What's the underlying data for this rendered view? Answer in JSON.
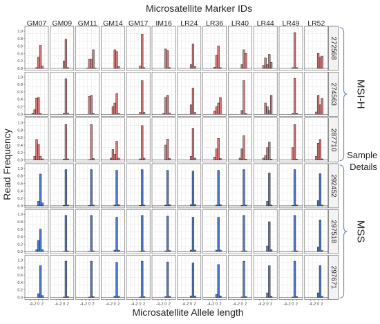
{
  "chart_data": {
    "type": "bar",
    "title": "Microsatellite Marker IDs",
    "xlabel": "Microsatellite Allele length",
    "ylabel": "Read Frequency",
    "markers": [
      "GM07",
      "GM09",
      "GM11",
      "GM14",
      "GM17",
      "IM16",
      "LR24",
      "LR36",
      "LR40",
      "LR44",
      "LR49",
      "LR52"
    ],
    "samples": [
      "272568",
      "274563",
      "287710",
      "292452",
      "297518",
      "297671"
    ],
    "groups": [
      {
        "label": "MSI-H",
        "samples": [
          "272568",
          "274563",
          "287710"
        ],
        "color": "#d9797a"
      },
      {
        "label": "MSS",
        "samples": [
          "292452",
          "297518",
          "297671"
        ],
        "color": "#4e7ad1"
      }
    ],
    "side_note": [
      "Sample",
      "Details"
    ],
    "x_ticks": [
      "-4",
      "-2",
      "0",
      "2"
    ],
    "y_ticks": [
      "0.0",
      "0.2",
      "0.4",
      "0.6",
      "0.8",
      "1.0"
    ],
    "ylim": [
      0,
      1
    ],
    "x_positions": [
      -5,
      -4,
      -3,
      -2,
      -1,
      0,
      1,
      2,
      3
    ],
    "values": {
      "272568": [
        [
          0,
          0,
          0,
          0,
          0.02,
          0.3,
          0.62,
          0.06,
          0
        ],
        [
          0,
          0,
          0,
          0,
          0,
          0.2,
          0.78,
          0.02,
          0
        ],
        [
          0,
          0,
          0,
          0,
          0.01,
          0.25,
          0.25,
          0.5,
          0.01
        ],
        [
          0,
          0,
          0,
          0,
          0,
          0.5,
          0.45,
          0.05,
          0
        ],
        [
          0,
          0,
          0,
          0,
          0,
          0.06,
          0.92,
          0.02,
          0
        ],
        [
          0,
          0,
          0,
          0,
          0,
          0.52,
          0.48,
          0.02,
          0
        ],
        [
          0,
          0,
          0,
          0,
          0,
          0.1,
          0.65,
          0.05,
          0
        ],
        [
          0,
          0,
          0,
          0,
          0.03,
          0.35,
          0.6,
          0.02,
          0
        ],
        [
          0,
          0,
          0,
          0,
          0,
          0.1,
          0.5,
          0.4,
          0
        ],
        [
          0,
          0,
          0,
          0.08,
          0.28,
          0.1,
          0.38,
          0.16,
          0
        ],
        [
          0,
          0,
          0,
          0,
          0,
          0.02,
          0.96,
          0.02,
          0
        ],
        [
          0,
          0,
          0,
          0,
          0,
          0.4,
          0.3,
          0.33,
          0
        ]
      ],
      "274563": [
        [
          0,
          0,
          0.02,
          0.12,
          0.43,
          0.45,
          0.02,
          0,
          0
        ],
        [
          0,
          0,
          0,
          0,
          0,
          0.02,
          0.95,
          0.03,
          0
        ],
        [
          0,
          0,
          0,
          0,
          0,
          0.48,
          0.5,
          0.02,
          0
        ],
        [
          0,
          0,
          0,
          0,
          0.2,
          0.3,
          0.55,
          0.02,
          0
        ],
        [
          0,
          0,
          0,
          0,
          0,
          0.05,
          0.9,
          0.05,
          0
        ],
        [
          0,
          0,
          0,
          0,
          0.02,
          0.45,
          0.5,
          0.03,
          0
        ],
        [
          0,
          0,
          0,
          0,
          0,
          0.25,
          0.7,
          0.05,
          0
        ],
        [
          0,
          0,
          0,
          0,
          0.08,
          0.2,
          0.3,
          0.45,
          0
        ],
        [
          0,
          0,
          0,
          0,
          0,
          0.1,
          0.9,
          0.02,
          0
        ],
        [
          0,
          0,
          0,
          0,
          0.3,
          0.2,
          0.1,
          0.5,
          0
        ],
        [
          0,
          0,
          0,
          0,
          0,
          0.02,
          0.96,
          0.02,
          0
        ],
        [
          0,
          0,
          0,
          0,
          0.06,
          0.5,
          0.25,
          0.42,
          0
        ]
      ],
      "287710": [
        [
          0,
          0,
          0,
          0.1,
          0.55,
          0.42,
          0.1,
          0.03,
          0
        ],
        [
          0,
          0,
          0,
          0,
          0,
          0.02,
          0.95,
          0.03,
          0
        ],
        [
          0,
          0,
          0,
          0,
          0,
          0.01,
          0.95,
          0.04,
          0
        ],
        [
          0,
          0,
          0,
          0.05,
          0.28,
          0.15,
          0.5,
          0.05,
          0
        ],
        [
          0,
          0,
          0,
          0,
          0,
          0.03,
          0.92,
          0.05,
          0
        ],
        [
          0,
          0,
          0,
          0,
          0,
          0.4,
          0.56,
          0.04,
          0
        ],
        [
          0,
          0,
          0,
          0,
          0,
          0.1,
          0.85,
          0.05,
          0
        ],
        [
          0,
          0,
          0,
          0,
          0.08,
          0.3,
          0.58,
          0.04,
          0
        ],
        [
          0,
          0,
          0,
          0,
          0.05,
          0.3,
          0.65,
          0.02,
          0
        ],
        [
          0,
          0,
          0,
          0.05,
          0.12,
          0.33,
          0.48,
          0.02,
          0
        ],
        [
          0,
          0,
          0,
          0,
          0,
          0.33,
          0.95,
          0.02,
          0
        ],
        [
          0,
          0,
          0,
          0,
          0.1,
          0.45,
          0.55,
          0.03,
          0
        ]
      ],
      "292452": [
        [
          0,
          0,
          0,
          0,
          0,
          0.12,
          0.85,
          0.08,
          0
        ],
        [
          0,
          0,
          0,
          0,
          0,
          0.01,
          0.97,
          0.02,
          0
        ],
        [
          0,
          0,
          0,
          0,
          0,
          0.01,
          0.97,
          0.02,
          0
        ],
        [
          0,
          0,
          0,
          0,
          0,
          0.02,
          0.95,
          0.03,
          0
        ],
        [
          0,
          0,
          0,
          0,
          0,
          0.01,
          0.97,
          0.02,
          0
        ],
        [
          0,
          0,
          0,
          0,
          0,
          0.02,
          0.95,
          0.03,
          0
        ],
        [
          0,
          0,
          0,
          0,
          0,
          0.03,
          0.93,
          0.04,
          0
        ],
        [
          0,
          0,
          0,
          0,
          0,
          0.02,
          0.95,
          0.03,
          0
        ],
        [
          0,
          0,
          0,
          0,
          0,
          0.01,
          0.97,
          0.02,
          0
        ],
        [
          0,
          0,
          0,
          0,
          0,
          0.12,
          0.88,
          0.02,
          0
        ],
        [
          0,
          0,
          0,
          0,
          0,
          0.01,
          0.97,
          0.02,
          0
        ],
        [
          0,
          0,
          0,
          0,
          0,
          0.14,
          0.86,
          0.02,
          0
        ]
      ],
      "297518": [
        [
          0,
          0,
          0,
          0,
          0.05,
          0.3,
          0.6,
          0.05,
          0
        ],
        [
          0,
          0,
          0,
          0,
          0,
          0.01,
          0.97,
          0.02,
          0
        ],
        [
          0,
          0,
          0,
          0,
          0,
          0.01,
          0.97,
          0.02,
          0
        ],
        [
          0,
          0,
          0,
          0,
          0,
          0.04,
          0.92,
          0.04,
          0
        ],
        [
          0,
          0,
          0,
          0,
          0,
          0.01,
          0.97,
          0.02,
          0
        ],
        [
          0,
          0,
          0,
          0,
          0,
          0.02,
          0.95,
          0.03,
          0
        ],
        [
          0,
          0,
          0,
          0,
          0,
          0.04,
          0.92,
          0.04,
          0
        ],
        [
          0,
          0,
          0,
          0,
          0,
          0.04,
          0.92,
          0.04,
          0
        ],
        [
          0,
          0,
          0,
          0,
          0,
          0.01,
          0.97,
          0.02,
          0
        ],
        [
          0,
          0,
          0,
          0,
          0,
          0.15,
          0.8,
          0.05,
          0
        ],
        [
          0,
          0,
          0,
          0,
          0,
          0.01,
          0.97,
          0.02,
          0
        ],
        [
          0,
          0,
          0,
          0,
          0,
          0.12,
          0.85,
          0.03,
          0
        ]
      ],
      "297671": [
        [
          0,
          0,
          0,
          0,
          0,
          0.1,
          0.85,
          0.05,
          0
        ],
        [
          0,
          0,
          0,
          0,
          0,
          0.01,
          0.97,
          0.02,
          0
        ],
        [
          0,
          0,
          0,
          0,
          0,
          0.01,
          0.97,
          0.02,
          0
        ],
        [
          0,
          0,
          0,
          0,
          0,
          0.03,
          0.94,
          0.03,
          0
        ],
        [
          0,
          0,
          0,
          0,
          0,
          0.01,
          0.97,
          0.02,
          0
        ],
        [
          0,
          0,
          0,
          0,
          0,
          0.02,
          0.95,
          0.03,
          0
        ],
        [
          0,
          0,
          0,
          0,
          0,
          0.04,
          0.92,
          0.04,
          0
        ],
        [
          0,
          0,
          0,
          0,
          0,
          0.08,
          0.88,
          0.04,
          0
        ],
        [
          0,
          0,
          0,
          0,
          0,
          0.01,
          0.97,
          0.02,
          0
        ],
        [
          0,
          0,
          0,
          0,
          0,
          0.12,
          0.85,
          0.03,
          0
        ],
        [
          0,
          0,
          0,
          0,
          0,
          0.01,
          0.97,
          0.02,
          0
        ],
        [
          0,
          0,
          0,
          0,
          0,
          0.12,
          0.85,
          0.03,
          0
        ]
      ]
    },
    "grid": true,
    "legend": "none"
  }
}
